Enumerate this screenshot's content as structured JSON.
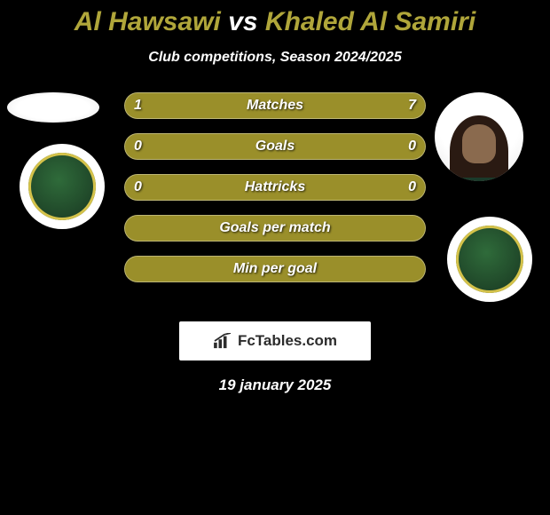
{
  "background_color": "#000000",
  "title": {
    "player1": "Al Hawsawi",
    "vs": "vs",
    "player2": "Khaled Al Samiri",
    "player1_color": "#b0a63a",
    "vs_color": "#ffffff",
    "player2_color": "#b0a63a",
    "fontsize": 30
  },
  "subtitle": {
    "text": "Club competitions, Season 2024/2025",
    "color": "#ffffff",
    "fontsize": 16
  },
  "bars": {
    "track_color": "#9a8f2a",
    "track_border": "rgba(255,255,255,0.35)",
    "fill_color_left": "#9a8f2a",
    "fill_color_right": "#9a8f2a",
    "label_color": "#ffffff",
    "value_color": "#ffffff",
    "label_fontsize": 16,
    "height": 30,
    "radius": 15,
    "rows": [
      {
        "label": "Matches",
        "left": "1",
        "right": "7",
        "left_pct": 12.5,
        "right_pct": 87.5
      },
      {
        "label": "Goals",
        "left": "0",
        "right": "0",
        "left_pct": 50,
        "right_pct": 50
      },
      {
        "label": "Hattricks",
        "left": "0",
        "right": "0",
        "left_pct": 50,
        "right_pct": 50
      },
      {
        "label": "Goals per match",
        "left": "",
        "right": "",
        "left_pct": 50,
        "right_pct": 50
      },
      {
        "label": "Min per goal",
        "left": "",
        "right": "",
        "left_pct": 50,
        "right_pct": 50
      }
    ]
  },
  "avatars": {
    "p1_photo_bg": "#ffffff",
    "p2_photo_bg": "#ffffff",
    "club_badge_bg": "radial-gradient(circle at 45% 40%, #2f6b3a 0%, #1c3f25 80%)",
    "club_accent": "#d4c24a"
  },
  "branding": {
    "text": "FcTables.com",
    "bg": "#ffffff",
    "text_color": "#2c2c2c",
    "icon_color": "#2c2c2c"
  },
  "date": {
    "text": "19 january 2025",
    "color": "#ffffff",
    "fontsize": 17
  }
}
